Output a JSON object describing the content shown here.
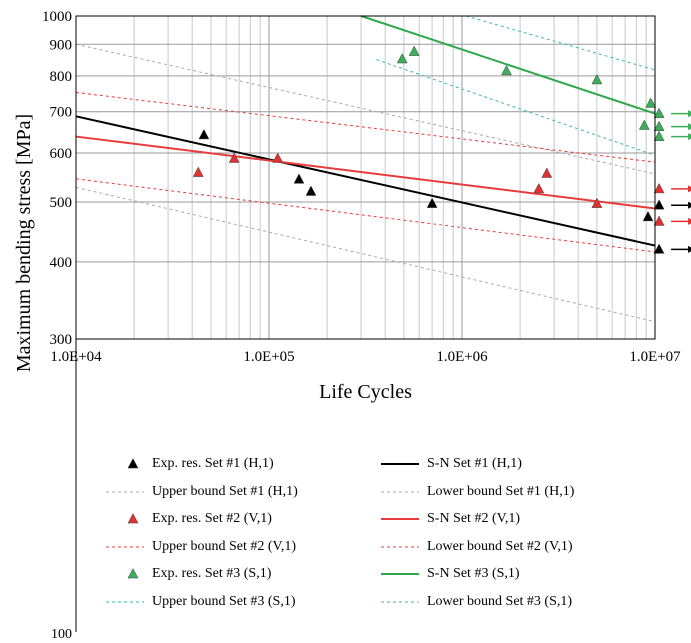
{
  "chart_data": {
    "type": "scatter",
    "xscale": "log",
    "yscale": "log",
    "xlim": [
      10000,
      10000000
    ],
    "ylim": [
      300,
      1000
    ],
    "grid": true,
    "xlabel": "Life Cycles",
    "ylabel": "Maximum bending stress [MPa]",
    "x_tick_labels": [
      "1.0E+04",
      "1.0E+05",
      "1.0E+06",
      "1.0E+07"
    ],
    "y_tick_labels": [
      "300",
      "400",
      "500",
      "600",
      "700",
      "800",
      "900",
      "1000"
    ],
    "y_extra_tick_label": "100",
    "legend_position": "below",
    "series": [
      {
        "name": "Exp. res. Set #1 (H,1)",
        "kind": "points",
        "color": "#000000",
        "points": [
          [
            46000,
            642
          ],
          [
            143000,
            544
          ],
          [
            165000,
            520
          ],
          [
            700000,
            497
          ],
          [
            9200000,
            473
          ],
          [
            10500000,
            419
          ],
          [
            10500000,
            494
          ]
        ],
        "runout": [
          [
            10500000,
            419
          ],
          [
            10500000,
            494
          ]
        ]
      },
      {
        "name": "S-N Set #1 (H,1)",
        "kind": "line",
        "style": "solid",
        "color": "#000000",
        "points": [
          [
            10000,
            688
          ],
          [
            10000000,
            425
          ]
        ]
      },
      {
        "name": "Upper bound Set #1 (H,1)",
        "kind": "line",
        "style": "dashed",
        "color": "#a9a9a9",
        "points": [
          [
            10000,
            900
          ],
          [
            10000000,
            555
          ]
        ]
      },
      {
        "name": "Lower bound Set #1 (H,1)",
        "kind": "line",
        "style": "dashed",
        "color": "#a9a9a9",
        "points": [
          [
            10000,
            528
          ],
          [
            10000000,
            320
          ]
        ]
      },
      {
        "name": "Exp. res. Set #2 (V,1)",
        "kind": "points",
        "color": "#e03030",
        "points": [
          [
            43000,
            558
          ],
          [
            66000,
            588
          ],
          [
            111000,
            588
          ],
          [
            2500000,
            525
          ],
          [
            2750000,
            556
          ],
          [
            5000000,
            497
          ],
          [
            10500000,
            465
          ],
          [
            10500000,
            525
          ]
        ],
        "runout": [
          [
            10500000,
            465
          ],
          [
            10500000,
            525
          ]
        ]
      },
      {
        "name": "S-N Set #2 (V,1)",
        "kind": "line",
        "style": "solid",
        "color": "#e83c3c",
        "points": [
          [
            10000,
            638
          ],
          [
            10000000,
            488
          ]
        ]
      },
      {
        "name": "Upper bound Set #2 (V,1)",
        "kind": "line",
        "style": "dashed",
        "color": "#e83c3c",
        "points": [
          [
            10000,
            752
          ],
          [
            10000000,
            580
          ]
        ]
      },
      {
        "name": "Lower bound Set #2 (V,1)",
        "kind": "line",
        "style": "dashed",
        "color": "#e83c3c",
        "points": [
          [
            10000,
            545
          ],
          [
            10000000,
            415
          ]
        ]
      },
      {
        "name": "Exp. res. Set #3 (S,1)",
        "kind": "points",
        "color": "#3cae5a",
        "points": [
          [
            490000,
            852
          ],
          [
            565000,
            876
          ],
          [
            1700000,
            815
          ],
          [
            5000000,
            788
          ],
          [
            8800000,
            665
          ],
          [
            9500000,
            722
          ],
          [
            10500000,
            695
          ],
          [
            10500000,
            662
          ],
          [
            10500000,
            638
          ]
        ],
        "runout": [
          [
            10500000,
            695
          ],
          [
            10500000,
            662
          ],
          [
            10500000,
            638
          ]
        ]
      },
      {
        "name": "S-N Set #3 (S,1)",
        "kind": "line",
        "style": "solid",
        "color": "#2ca84a",
        "points": [
          [
            300000,
            1000
          ],
          [
            10000000,
            695
          ]
        ]
      },
      {
        "name": "Upper bound Set #3 (S,1)",
        "kind": "line",
        "style": "dashed",
        "color": "#3cb8a0",
        "points": [
          [
            1050000,
            1000
          ],
          [
            10000000,
            818
          ]
        ]
      },
      {
        "name": "Lower bound Set #3 (S,1)",
        "kind": "line",
        "style": "dashed",
        "color": "#3cb8a0",
        "points": [
          [
            360000,
            850
          ],
          [
            10000000,
            595
          ]
        ]
      }
    ]
  },
  "legend": {
    "rows": [
      [
        "Exp. res. Set #1 (H,1)",
        "S-N Set #1 (H,1)"
      ],
      [
        "Upper bound Set #1 (H,1)",
        "Lower bound Set #1 (H,1)"
      ],
      [
        "Exp. res. Set #2 (V,1)",
        "S-N Set #2 (V,1)"
      ],
      [
        "Upper bound Set #2 (V,1)",
        "Lower bound Set #2 (V,1)"
      ],
      [
        "Exp. res. Set #3 (S,1)",
        "S-N Set #3 (S,1)"
      ],
      [
        "Upper bound Set #3 (S,1)",
        "Lower bound Set #3 (S,1)"
      ]
    ]
  }
}
